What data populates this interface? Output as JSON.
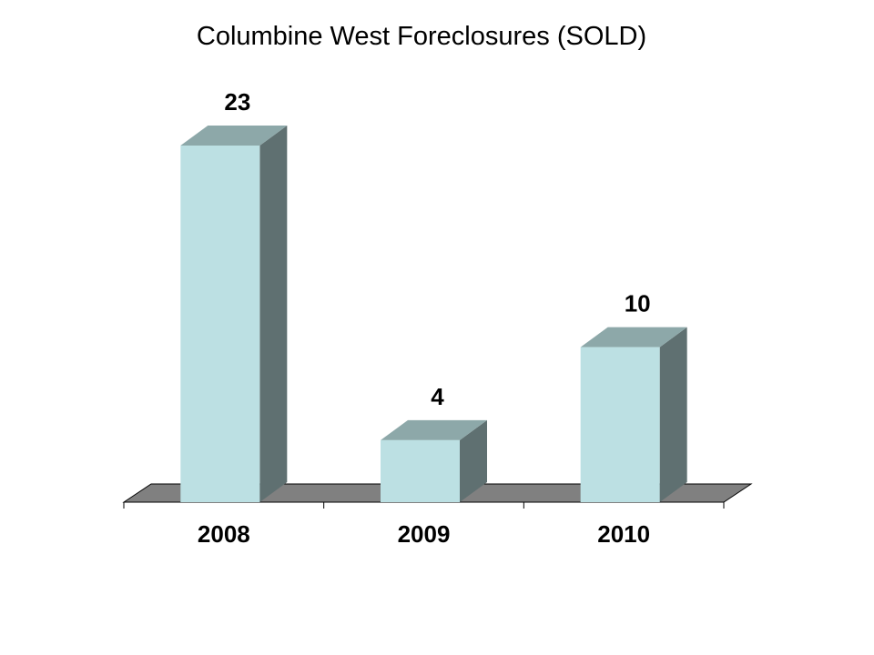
{
  "chart_data": {
    "type": "bar",
    "title": "Columbine West Foreclosures (SOLD)",
    "categories": [
      "2008",
      "2009",
      "2010"
    ],
    "values": [
      23,
      4,
      10
    ],
    "data_labels": [
      "23",
      "4",
      "10"
    ],
    "ylim": [
      0,
      23
    ],
    "grid": false,
    "legend": "none",
    "colors": {
      "bar_front": "#bce0e3",
      "bar_top": "#8da8a9",
      "bar_side": "#5f7071",
      "floor": "#808080",
      "axis": "#000000"
    }
  }
}
